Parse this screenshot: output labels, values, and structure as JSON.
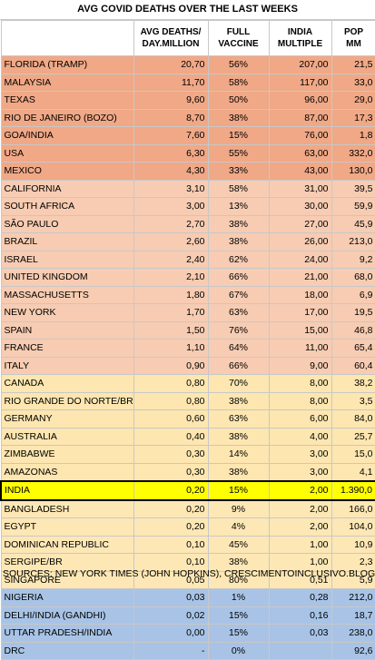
{
  "title": "AVG COVID DEATHS OVER THE LAST WEEKS",
  "headers": {
    "c1_line1": "AVG DEATHS/",
    "c1_line2": "DAY.MILLION",
    "c2_line1": "FULL",
    "c2_line2": "VACCINE",
    "c3_line1": "INDIA",
    "c3_line2": "MULTIPLE",
    "c4_line1": "POP",
    "c4_line2": "MM"
  },
  "rows": [
    {
      "name": "FLORIDA (TRAMP)",
      "deaths": "20,70",
      "vaccine": "56%",
      "multiple": "207,00",
      "pop": "21,5",
      "group": "g1"
    },
    {
      "name": "MALAYSIA",
      "deaths": "11,70",
      "vaccine": "58%",
      "multiple": "117,00",
      "pop": "33,0",
      "group": "g1"
    },
    {
      "name": "TEXAS",
      "deaths": "9,60",
      "vaccine": "50%",
      "multiple": "96,00",
      "pop": "29,0",
      "group": "g1"
    },
    {
      "name": "RIO DE JANEIRO (BOZO)",
      "deaths": "8,70",
      "vaccine": "38%",
      "multiple": "87,00",
      "pop": "17,3",
      "group": "g1"
    },
    {
      "name": "GOA/INDIA",
      "deaths": "7,60",
      "vaccine": "15%",
      "multiple": "76,00",
      "pop": "1,8",
      "group": "g1"
    },
    {
      "name": "USA",
      "deaths": "6,30",
      "vaccine": "55%",
      "multiple": "63,00",
      "pop": "332,0",
      "group": "g1"
    },
    {
      "name": "MEXICO",
      "deaths": "4,30",
      "vaccine": "33%",
      "multiple": "43,00",
      "pop": "130,0",
      "group": "g1"
    },
    {
      "name": "CALIFORNIA",
      "deaths": "3,10",
      "vaccine": "58%",
      "multiple": "31,00",
      "pop": "39,5",
      "group": "g2"
    },
    {
      "name": "SOUTH AFRICA",
      "deaths": "3,00",
      "vaccine": "13%",
      "multiple": "30,00",
      "pop": "59,9",
      "group": "g2"
    },
    {
      "name": "SÃO PAULO",
      "deaths": "2,70",
      "vaccine": "38%",
      "multiple": "27,00",
      "pop": "45,9",
      "group": "g2"
    },
    {
      "name": "BRAZIL",
      "deaths": "2,60",
      "vaccine": "38%",
      "multiple": "26,00",
      "pop": "213,0",
      "group": "g2"
    },
    {
      "name": "ISRAEL",
      "deaths": "2,40",
      "vaccine": "62%",
      "multiple": "24,00",
      "pop": "9,2",
      "group": "g2"
    },
    {
      "name": "UNITED KINGDOM",
      "deaths": "2,10",
      "vaccine": "66%",
      "multiple": "21,00",
      "pop": "68,0",
      "group": "g2"
    },
    {
      "name": "MASSACHUSETTS",
      "deaths": "1,80",
      "vaccine": "67%",
      "multiple": "18,00",
      "pop": "6,9",
      "group": "g2"
    },
    {
      "name": "NEW YORK",
      "deaths": "1,70",
      "vaccine": "63%",
      "multiple": "17,00",
      "pop": "19,5",
      "group": "g2"
    },
    {
      "name": "SPAIN",
      "deaths": "1,50",
      "vaccine": "76%",
      "multiple": "15,00",
      "pop": "46,8",
      "group": "g2"
    },
    {
      "name": "FRANCE",
      "deaths": "1,10",
      "vaccine": "64%",
      "multiple": "11,00",
      "pop": "65,4",
      "group": "g2"
    },
    {
      "name": "ITALY",
      "deaths": "0,90",
      "vaccine": "66%",
      "multiple": "9,00",
      "pop": "60,4",
      "group": "g2"
    },
    {
      "name": "CANADA",
      "deaths": "0,80",
      "vaccine": "70%",
      "multiple": "8,00",
      "pop": "38,2",
      "group": "g3"
    },
    {
      "name": "RIO GRANDE DO NORTE/BR",
      "deaths": "0,80",
      "vaccine": "38%",
      "multiple": "8,00",
      "pop": "3,5",
      "group": "g3"
    },
    {
      "name": "GERMANY",
      "deaths": "0,60",
      "vaccine": "63%",
      "multiple": "6,00",
      "pop": "84,0",
      "group": "g3"
    },
    {
      "name": "AUSTRALIA",
      "deaths": "0,40",
      "vaccine": "38%",
      "multiple": "4,00",
      "pop": "25,7",
      "group": "g3"
    },
    {
      "name": "ZIMBABWE",
      "deaths": "0,30",
      "vaccine": "14%",
      "multiple": "3,00",
      "pop": "15,0",
      "group": "g3"
    },
    {
      "name": "AMAZONAS",
      "deaths": "0,30",
      "vaccine": "38%",
      "multiple": "3,00",
      "pop": "4,1",
      "group": "g3"
    },
    {
      "name": "INDIA",
      "deaths": "0,20",
      "vaccine": "15%",
      "multiple": "2,00",
      "pop": "1.390,0",
      "group": "hl"
    },
    {
      "name": "BANGLADESH",
      "deaths": "0,20",
      "vaccine": "9%",
      "multiple": "2,00",
      "pop": "166,0",
      "group": "g4"
    },
    {
      "name": "EGYPT",
      "deaths": "0,20",
      "vaccine": "4%",
      "multiple": "2,00",
      "pop": "104,0",
      "group": "g4"
    },
    {
      "name": "DOMINICAN REPUBLIC",
      "deaths": "0,10",
      "vaccine": "45%",
      "multiple": "1,00",
      "pop": "10,9",
      "group": "g4"
    },
    {
      "name": "SERGIPE/BR",
      "deaths": "0,10",
      "vaccine": "38%",
      "multiple": "1,00",
      "pop": "2,3",
      "group": "g4"
    },
    {
      "name": "SINGAPORE",
      "deaths": "0,05",
      "vaccine": "80%",
      "multiple": "0,51",
      "pop": "5,9",
      "group": "g4"
    },
    {
      "name": "NIGERIA",
      "deaths": "0,03",
      "vaccine": "1%",
      "multiple": "0,28",
      "pop": "212,0",
      "group": "g5"
    },
    {
      "name": "DELHI/INDIA (GANDHI)",
      "deaths": "0,02",
      "vaccine": "15%",
      "multiple": "0,16",
      "pop": "18,7",
      "group": "g5"
    },
    {
      "name": "UTTAR PRADESH/INDIA",
      "deaths": "0,00",
      "vaccine": "15%",
      "multiple": "0,03",
      "pop": "238,0",
      "group": "g5"
    },
    {
      "name": "DRC",
      "deaths": "-",
      "vaccine": "0%",
      "multiple": "",
      "pop": "92,6",
      "group": "g5"
    }
  ],
  "source": "SOURCES: NEW YORK TIMES (JOHN HOPKINS), CRESCIMENTOINCLUSIVO.BLOG"
}
